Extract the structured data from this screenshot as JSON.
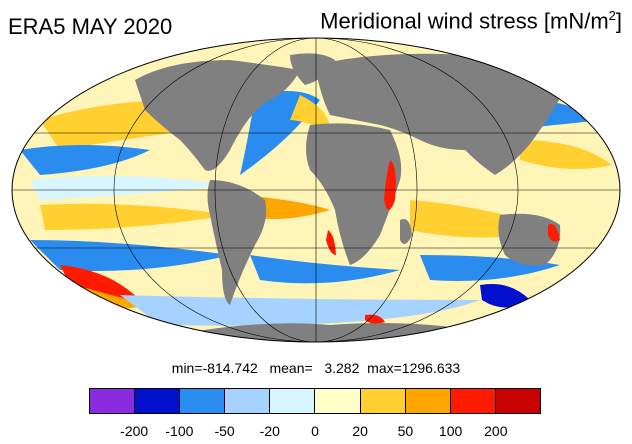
{
  "title_left": "ERA5 MAY 2020",
  "title_right": {
    "text": "Meridional wind stress [mN/m",
    "sup": "2",
    "close": "]"
  },
  "stats": {
    "min": "-814.742",
    "mean": "3.282",
    "max": "1296.633"
  },
  "colorbar": {
    "colors": [
      "#8a2be2",
      "#0010cc",
      "#2b8cf0",
      "#a6d2ff",
      "#d7f6ff",
      "#ffffc8",
      "#ffd030",
      "#ffa500",
      "#ff1a00",
      "#c80000"
    ],
    "labels": [
      "-200",
      "-100",
      "-50",
      "-20",
      "0",
      "20",
      "50",
      "100",
      "200"
    ]
  },
  "map_colors": {
    "land": "#808080",
    "ocean_base": "#fff5b8"
  }
}
